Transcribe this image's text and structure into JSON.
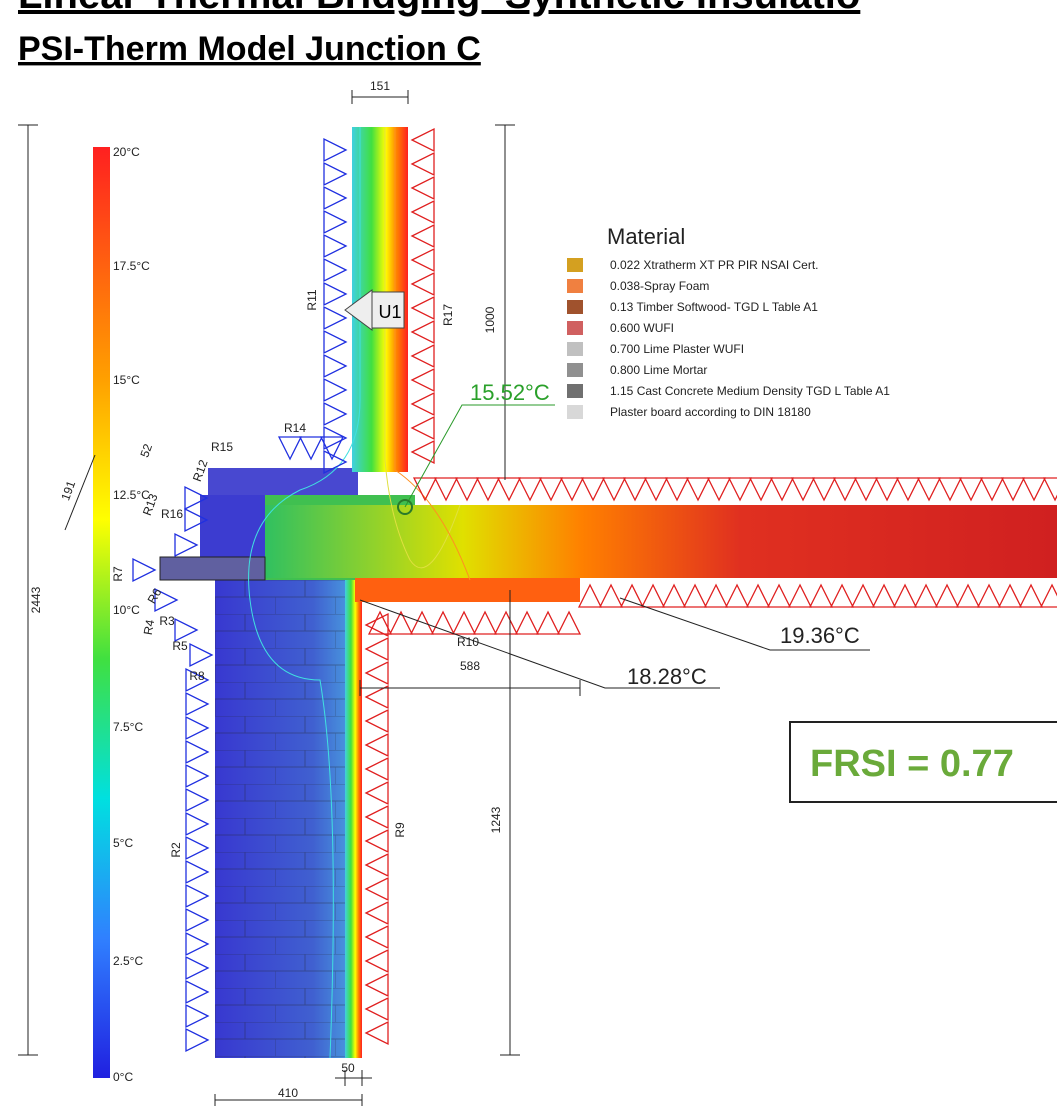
{
  "header": {
    "title": "Linear Thermal Bridging- Synthetic Insulatio",
    "subtitle": "PSI-Therm Model Junction C"
  },
  "scale": {
    "labels": [
      "20°C",
      "17.5°C",
      "15°C",
      "12.5°C",
      "10°C",
      "7.5°C",
      "5°C",
      "2.5°C",
      "0°C"
    ]
  },
  "legend": {
    "title": "Material",
    "items": [
      {
        "label": "0.022 Xtratherm XT PR PIR NSAI Cert.",
        "color": "#d4a020"
      },
      {
        "label": "0.038-Spray Foam",
        "color": "#f08040"
      },
      {
        "label": "0.13 Timber Softwood- TGD L Table A1",
        "color": "#a0522d"
      },
      {
        "label": "0.600 WUFI",
        "color": "#d06060"
      },
      {
        "label": "0.700 Lime Plaster WUFI",
        "color": "#c0c0c0"
      },
      {
        "label": "0.800 Lime Mortar",
        "color": "#909090"
      },
      {
        "label": "1.15 Cast Concrete Medium Density TGD L Table A1",
        "color": "#707070"
      },
      {
        "label": "Plaster board according to DIN 18180",
        "color": "#d8d8d8"
      }
    ]
  },
  "dimensions": {
    "top": "151",
    "upper": "1000",
    "total": "2443",
    "diag": "191",
    "ledge": "52",
    "slab": "588",
    "lower": "1243",
    "wall": "410",
    "ins": "50"
  },
  "boundaries": {
    "R11": "R11",
    "R17": "R17",
    "R14": "R14",
    "R15": "R15",
    "R12": "R12",
    "R13": "R13",
    "R16": "R16",
    "R7": "R7",
    "R6": "R6",
    "R4": "R4",
    "R3": "R3",
    "R5": "R5",
    "R8": "R8",
    "R10": "R10",
    "R2": "R2",
    "R9": "R9"
  },
  "annotations": {
    "u": "U1",
    "t1": "15.52°C",
    "t2": "19.36°C",
    "t3": "18.28°C"
  },
  "frsi": "FRSI = 0.77"
}
